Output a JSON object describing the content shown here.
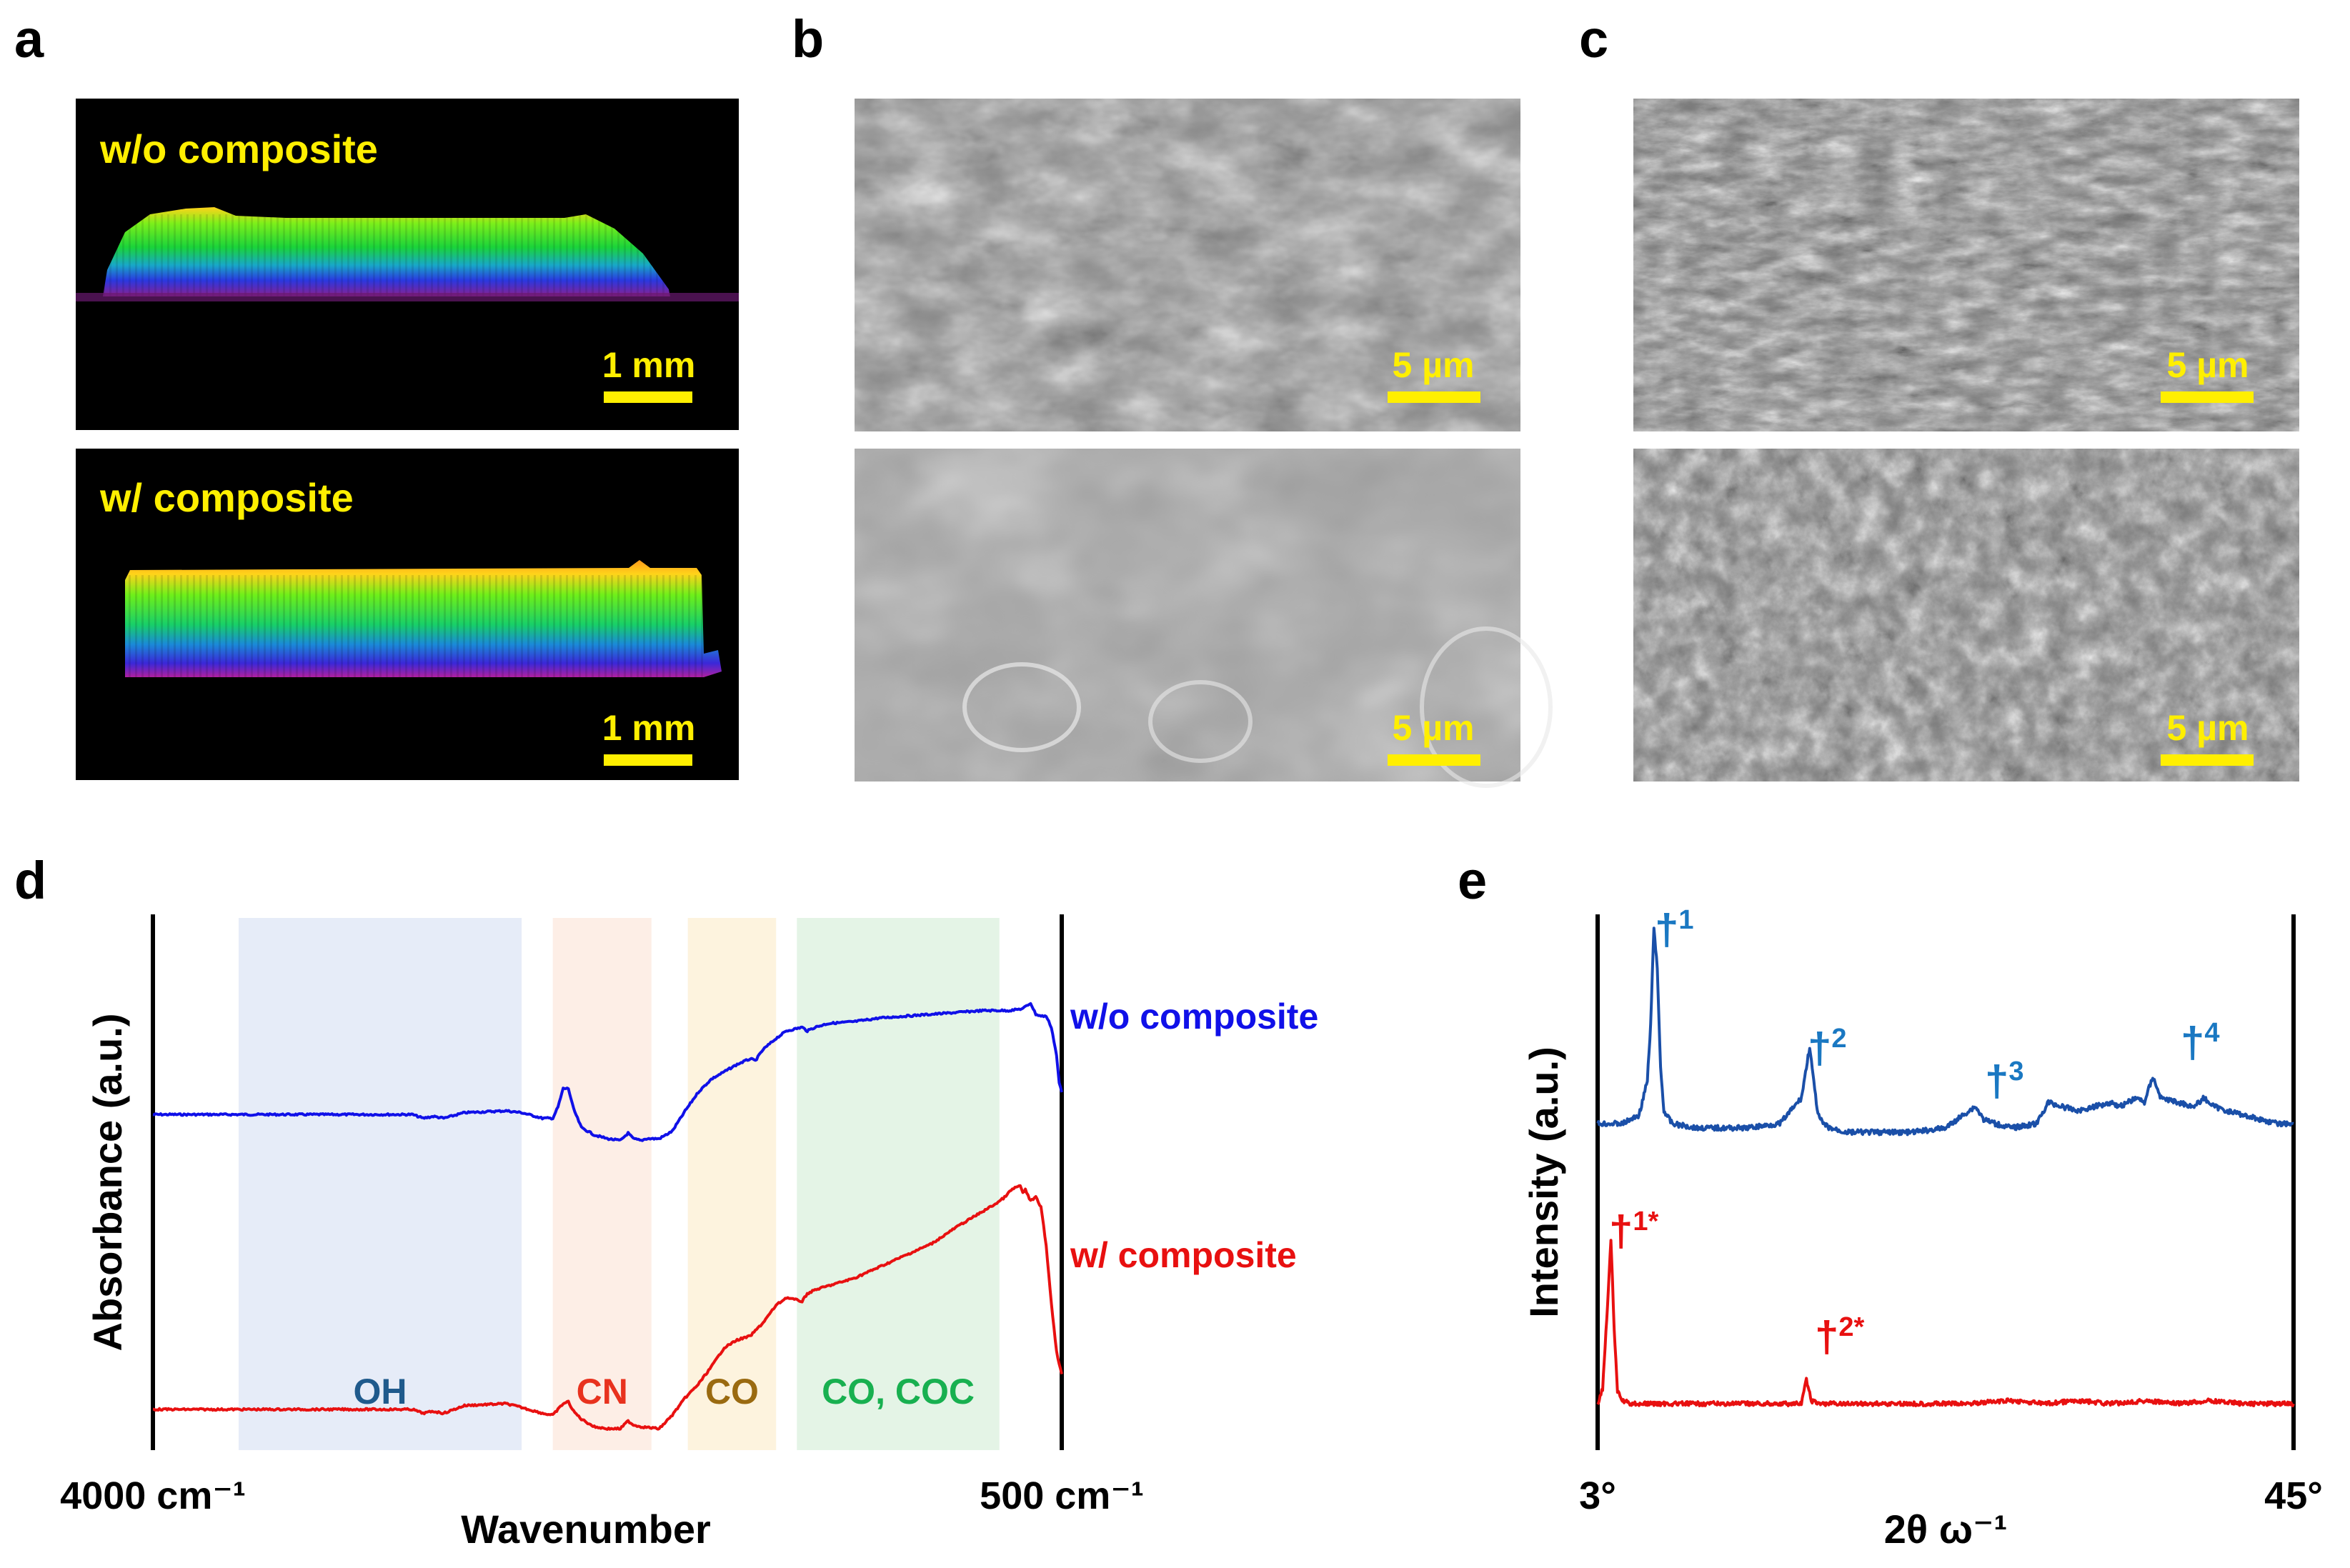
{
  "panels": {
    "a": {
      "label": "a",
      "top": {
        "title": "w/o composite",
        "scale": "1 mm"
      },
      "bottom": {
        "title": "w/ composite",
        "scale": "1 mm"
      }
    },
    "b": {
      "label": "b",
      "top": {
        "scale": "5 µm"
      },
      "bottom": {
        "scale": "5 µm"
      }
    },
    "c": {
      "label": "c",
      "top": {
        "scale": "5 µm"
      },
      "bottom": {
        "scale": "5 µm"
      }
    },
    "d": {
      "label": "d"
    },
    "e": {
      "label": "e"
    }
  },
  "colors": {
    "blue_d": "#1010e8",
    "red": "#e81010",
    "blue_e": "#1a4fa8",
    "peak_blue": "#1a78c2",
    "scale_yellow": "#ffef00"
  },
  "chart_data": [
    {
      "type": "line",
      "panel": "d",
      "xlabel": "Wavenumber",
      "ylabel": "Absorbance (a.u.)",
      "x_tick_left": "4000 cm⁻¹",
      "x_tick_right": "500 cm⁻¹",
      "xlim": [
        4000,
        500
      ],
      "regions": [
        {
          "label": "OH",
          "x_start": 3670,
          "x_end": 2580,
          "fill": "#e6ecf8",
          "text_color": "#1f5a8c"
        },
        {
          "label": "CN",
          "x_start": 2460,
          "x_end": 2080,
          "fill": "#fdeee6",
          "text_color": "#e8321e"
        },
        {
          "label": "CO",
          "x_start": 1940,
          "x_end": 1600,
          "fill": "#fdf3de",
          "text_color": "#9a6a10"
        },
        {
          "label": "CO, COC",
          "x_start": 1520,
          "x_end": 740,
          "fill": "#e4f4e6",
          "text_color": "#18b050"
        }
      ],
      "series": [
        {
          "name": "w/o composite",
          "color": "#1010e8",
          "x": [
            4000,
            3800,
            3600,
            3400,
            3200,
            3000,
            2960,
            2920,
            2880,
            2800,
            2640,
            2580,
            2500,
            2460,
            2440,
            2420,
            2400,
            2380,
            2350,
            2300,
            2250,
            2200,
            2170,
            2150,
            2120,
            2100,
            2050,
            2000,
            1950,
            1900,
            1850,
            1800,
            1750,
            1700,
            1680,
            1650,
            1600,
            1560,
            1500,
            1480,
            1450,
            1400,
            1300,
            1200,
            1100,
            1000,
            900,
            800,
            700,
            650,
            620,
            600,
            580,
            560,
            540,
            520,
            510,
            500
          ],
          "y": [
            0.43,
            0.43,
            0.43,
            0.43,
            0.43,
            0.43,
            0.41,
            0.42,
            0.41,
            0.44,
            0.45,
            0.44,
            0.41,
            0.41,
            0.47,
            0.57,
            0.57,
            0.46,
            0.36,
            0.32,
            0.3,
            0.29,
            0.33,
            0.3,
            0.29,
            0.3,
            0.3,
            0.34,
            0.45,
            0.55,
            0.62,
            0.66,
            0.7,
            0.73,
            0.72,
            0.78,
            0.84,
            0.88,
            0.9,
            0.88,
            0.9,
            0.92,
            0.93,
            0.95,
            0.96,
            0.97,
            0.98,
            0.99,
            0.99,
            1.0,
            1.03,
            0.97,
            0.96,
            0.96,
            0.9,
            0.75,
            0.6,
            0.55
          ]
        },
        {
          "name": "w/ composite",
          "color": "#e81010",
          "x": [
            4000,
            3800,
            3600,
            3400,
            3200,
            3000,
            2960,
            2920,
            2880,
            2800,
            2640,
            2580,
            2500,
            2460,
            2420,
            2400,
            2380,
            2350,
            2300,
            2250,
            2200,
            2170,
            2150,
            2120,
            2050,
            2000,
            1950,
            1900,
            1850,
            1800,
            1750,
            1700,
            1650,
            1600,
            1560,
            1500,
            1480,
            1450,
            1400,
            1300,
            1200,
            1100,
            1000,
            900,
            800,
            750,
            720,
            700,
            680,
            660,
            650,
            640,
            620,
            600,
            580,
            560,
            540,
            520,
            500
          ],
          "y": [
            0.1,
            0.1,
            0.1,
            0.1,
            0.1,
            0.1,
            0.08,
            0.09,
            0.08,
            0.12,
            0.13,
            0.11,
            0.08,
            0.07,
            0.13,
            0.14,
            0.09,
            0.05,
            0.01,
            0.0,
            0.0,
            0.04,
            0.02,
            0.01,
            0.0,
            0.07,
            0.16,
            0.23,
            0.32,
            0.42,
            0.46,
            0.48,
            0.55,
            0.64,
            0.68,
            0.66,
            0.7,
            0.72,
            0.74,
            0.78,
            0.84,
            0.9,
            0.96,
            1.05,
            1.13,
            1.17,
            1.2,
            1.23,
            1.25,
            1.26,
            1.22,
            1.24,
            1.18,
            1.2,
            1.15,
            0.95,
            0.65,
            0.4,
            0.28
          ]
        }
      ],
      "series_labels": [
        "w/o composite",
        "w/ composite"
      ]
    },
    {
      "type": "line",
      "panel": "e",
      "xlabel": "2θ ω⁻¹",
      "ylabel": "Intensity (a.u.)",
      "x_tick_left": "3°",
      "x_tick_right": "45°",
      "xlim": [
        3,
        45
      ],
      "series": [
        {
          "name": "",
          "color": "#1a4fa8",
          "x": [
            3,
            4.5,
            5.5,
            6.0,
            6.2,
            6.4,
            6.6,
            6.8,
            7.0,
            7.5,
            9,
            12,
            14,
            15.3,
            15.8,
            16.0,
            16.3,
            16.6,
            17,
            18,
            20,
            22,
            24,
            25.4,
            25.8,
            26.3,
            27,
            28,
            29.5,
            30.2,
            31,
            32,
            33,
            34,
            34.5,
            35,
            35.5,
            36,
            36.5,
            37,
            38,
            39,
            39.6,
            40.2,
            41,
            42,
            43,
            44,
            45
          ],
          "y": [
            0.22,
            0.22,
            0.24,
            0.32,
            0.45,
            0.68,
            0.58,
            0.35,
            0.25,
            0.22,
            0.21,
            0.21,
            0.22,
            0.28,
            0.4,
            0.33,
            0.24,
            0.22,
            0.21,
            0.2,
            0.2,
            0.2,
            0.21,
            0.25,
            0.26,
            0.23,
            0.22,
            0.21,
            0.22,
            0.27,
            0.26,
            0.25,
            0.26,
            0.27,
            0.26,
            0.27,
            0.28,
            0.27,
            0.33,
            0.28,
            0.27,
            0.26,
            0.28,
            0.26,
            0.25,
            0.24,
            0.23,
            0.22,
            0.22
          ]
        },
        {
          "name": "",
          "color": "#e81010",
          "x": [
            3,
            3.3,
            3.6,
            3.8,
            4.0,
            4.2,
            4.5,
            5,
            8,
            12,
            15.3,
            15.6,
            15.9,
            16.3,
            18,
            25,
            28,
            30,
            32,
            34,
            36,
            38,
            40,
            42,
            45
          ],
          "y": [
            0.0,
            0.05,
            0.33,
            0.55,
            0.25,
            0.04,
            0.01,
            0.0,
            0.0,
            0.0,
            0.0,
            0.08,
            0.01,
            0.0,
            0.0,
            0.0,
            0.01,
            0.0,
            0.01,
            0.0,
            0.01,
            0.0,
            0.01,
            0.0,
            0.0
          ]
        }
      ],
      "peak_labels": [
        {
          "text": "†1",
          "mark": "†",
          "sup": "1",
          "color": "#1a78c2"
        },
        {
          "text": "†2",
          "mark": "†",
          "sup": "2",
          "color": "#1a78c2"
        },
        {
          "text": "†3",
          "mark": "†",
          "sup": "3",
          "color": "#1a78c2"
        },
        {
          "text": "†4",
          "mark": "†",
          "sup": "4",
          "color": "#1a78c2"
        },
        {
          "text": "†1*",
          "mark": "†",
          "sup": "1*",
          "color": "#e81010"
        },
        {
          "text": "†2*",
          "mark": "†",
          "sup": "2*",
          "color": "#e81010"
        }
      ]
    }
  ]
}
